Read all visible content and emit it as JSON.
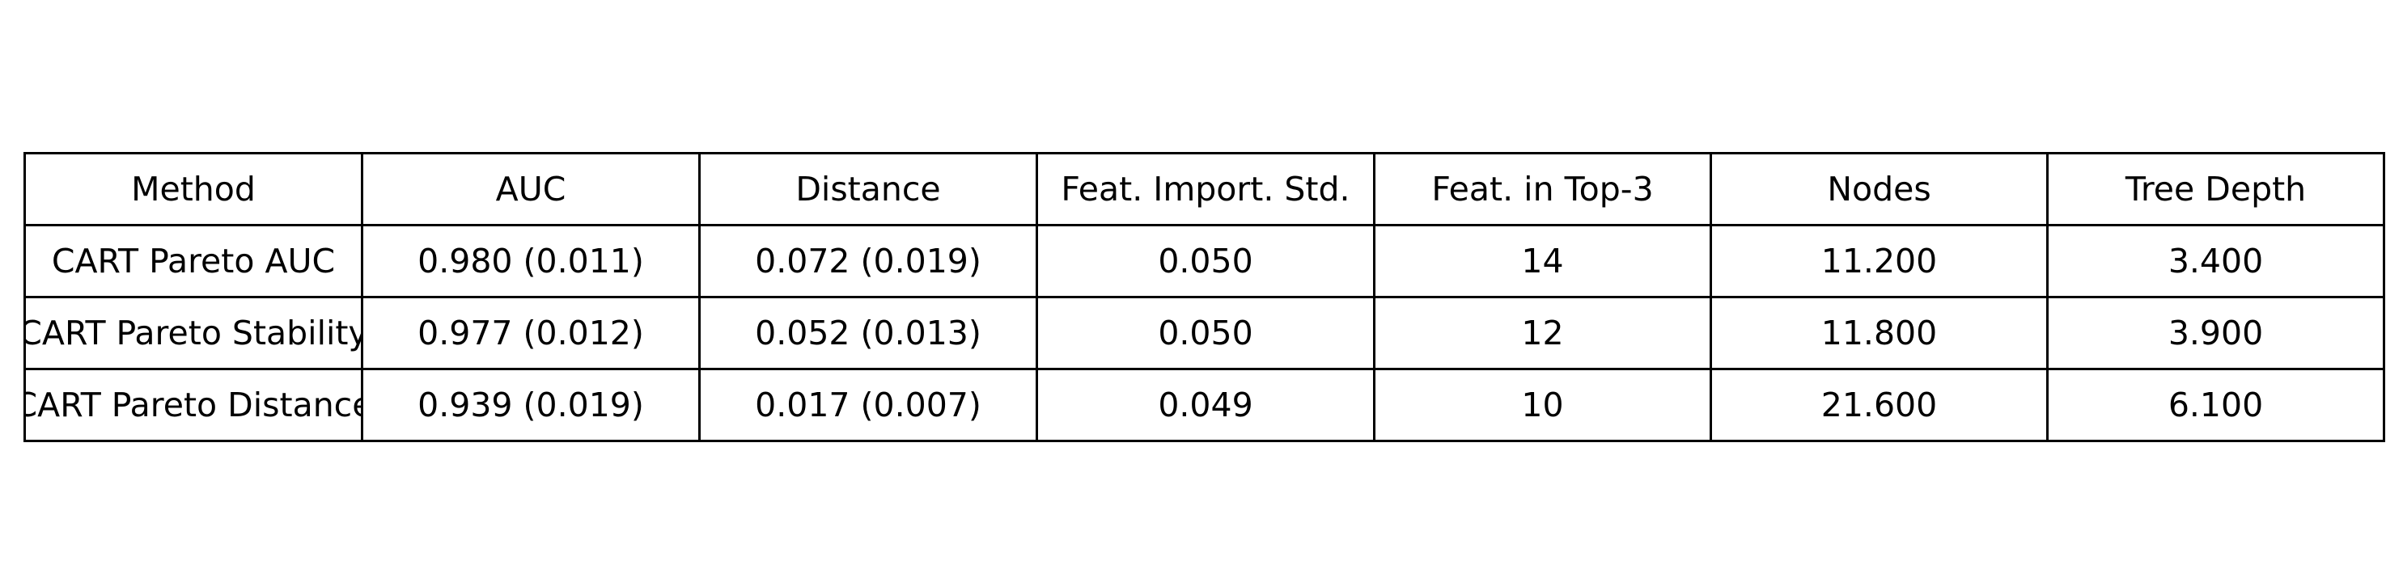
{
  "chart_data": {
    "type": "table",
    "columns": [
      "Method",
      "AUC",
      "Distance",
      "Feat. Import. Std.",
      "Feat. in Top-3",
      "Nodes",
      "Tree Depth"
    ],
    "rows": [
      [
        "CART Pareto AUC",
        "0.980 (0.011)",
        "0.072 (0.019)",
        "0.050",
        "14",
        "11.200",
        "3.400"
      ],
      [
        "CART Pareto Stability",
        "0.977 (0.012)",
        "0.052 (0.013)",
        "0.050",
        "12",
        "11.800",
        "3.900"
      ],
      [
        "CART Pareto Distance",
        "0.939 (0.019)",
        "0.017 (0.007)",
        "0.049",
        "10",
        "21.600",
        "6.100"
      ]
    ]
  }
}
